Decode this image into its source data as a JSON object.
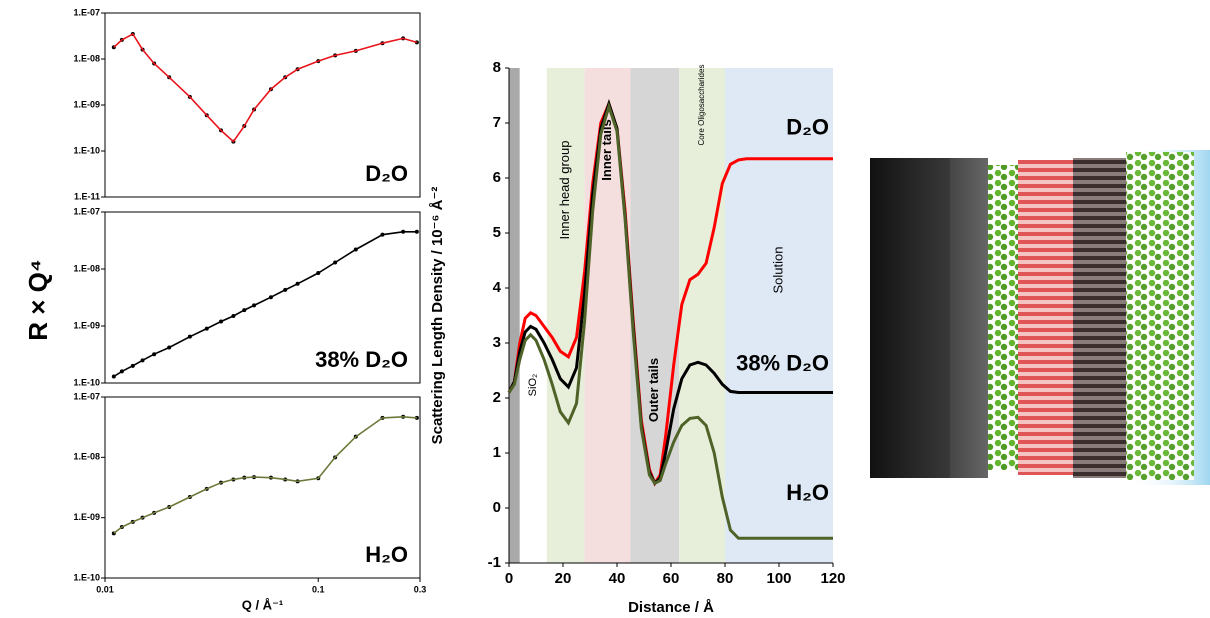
{
  "chart_data": [
    {
      "type": "line",
      "xscale": "log",
      "yscale": "log",
      "markers": true,
      "ylabel": "R × Q⁴",
      "annotation": "D₂O",
      "xlim": [
        0.01,
        0.3
      ],
      "ylim": [
        1e-11,
        1e-07
      ],
      "yticks": [
        {
          "value": 1e-07,
          "label": "1.E-07"
        },
        {
          "value": 1e-08,
          "label": "1.E-08"
        },
        {
          "value": 1e-09,
          "label": "1.E-09"
        },
        {
          "value": 1e-10,
          "label": "1.E-10"
        },
        {
          "value": 1e-11,
          "label": "1.E-11"
        }
      ],
      "x": [
        0.011,
        0.012,
        0.0135,
        0.015,
        0.017,
        0.02,
        0.025,
        0.03,
        0.035,
        0.04,
        0.045,
        0.05,
        0.06,
        0.07,
        0.08,
        0.1,
        0.12,
        0.15,
        0.2,
        0.25,
        0.29
      ],
      "series": [
        {
          "color": "#e8141b",
          "marker_color": "#000000",
          "values": [
            1.8e-08,
            2.6e-08,
            3.5e-08,
            1.6e-08,
            8e-09,
            4e-09,
            1.5e-09,
            6e-10,
            2.8e-10,
            1.6e-10,
            3.5e-10,
            8e-10,
            2.2e-09,
            4e-09,
            6e-09,
            9e-09,
            1.2e-08,
            1.5e-08,
            2.2e-08,
            2.8e-08,
            2.3e-08
          ]
        }
      ]
    },
    {
      "type": "line",
      "xscale": "log",
      "yscale": "log",
      "markers": true,
      "annotation": "38% D₂O",
      "xlim": [
        0.01,
        0.3
      ],
      "ylim": [
        1e-10,
        1e-07
      ],
      "yticks": [
        {
          "value": 1e-07,
          "label": "1.E-07"
        },
        {
          "value": 1e-08,
          "label": "1.E-08"
        },
        {
          "value": 1e-09,
          "label": "1.E-09"
        },
        {
          "value": 1e-10,
          "label": "1.E-10"
        }
      ],
      "x": [
        0.011,
        0.012,
        0.0135,
        0.015,
        0.017,
        0.02,
        0.025,
        0.03,
        0.035,
        0.04,
        0.045,
        0.05,
        0.06,
        0.07,
        0.08,
        0.1,
        0.12,
        0.15,
        0.2,
        0.25,
        0.29
      ],
      "series": [
        {
          "color": "#000000",
          "marker_color": "#000000",
          "values": [
            1.3e-10,
            1.6e-10,
            2e-10,
            2.5e-10,
            3.2e-10,
            4.2e-10,
            6.5e-10,
            9e-10,
            1.2e-09,
            1.5e-09,
            1.9e-09,
            2.3e-09,
            3.2e-09,
            4.3e-09,
            5.5e-09,
            8.5e-09,
            1.3e-08,
            2.2e-08,
            4e-08,
            4.5e-08,
            4.5e-08
          ]
        }
      ]
    },
    {
      "type": "line",
      "xscale": "log",
      "yscale": "log",
      "markers": true,
      "annotation": "H₂O",
      "xlabel": "Q / Å⁻¹",
      "xlim": [
        0.01,
        0.3
      ],
      "ylim": [
        1e-10,
        1e-07
      ],
      "xticks": [
        0.01,
        0.1,
        0.3
      ],
      "yticks": [
        {
          "value": 1e-07,
          "label": "1.E-07"
        },
        {
          "value": 1e-08,
          "label": "1.E-08"
        },
        {
          "value": 1e-09,
          "label": "1.E-09"
        },
        {
          "value": 1e-10,
          "label": "1.E-10"
        }
      ],
      "x": [
        0.011,
        0.012,
        0.0135,
        0.015,
        0.017,
        0.02,
        0.025,
        0.03,
        0.035,
        0.04,
        0.045,
        0.05,
        0.06,
        0.07,
        0.08,
        0.1,
        0.12,
        0.15,
        0.2,
        0.25,
        0.29
      ],
      "series": [
        {
          "color": "#6b7a3a",
          "marker_color": "#000000",
          "values": [
            5.5e-10,
            7e-10,
            8.5e-10,
            1e-09,
            1.2e-09,
            1.5e-09,
            2.2e-09,
            3e-09,
            3.8e-09,
            4.3e-09,
            4.6e-09,
            4.7e-09,
            4.6e-09,
            4.3e-09,
            4e-09,
            4.5e-09,
            1e-08,
            2.2e-08,
            4.5e-08,
            4.7e-08,
            4.5e-08
          ]
        }
      ]
    },
    {
      "type": "line",
      "xscale": "linear",
      "yscale": "linear",
      "xlabel": "Distance / Å",
      "ylabel": "Scattering Length Density / 10⁻⁶ Å⁻²",
      "xlim": [
        0,
        120
      ],
      "ylim": [
        -1,
        8
      ],
      "xticks": [
        0,
        20,
        40,
        60,
        80,
        100,
        120
      ],
      "yticks": [
        -1,
        0,
        1,
        2,
        3,
        4,
        5,
        6,
        7,
        8
      ],
      "regions": [
        {
          "start": 0,
          "end": 4,
          "color": "#a9a9a9"
        },
        {
          "start": 4,
          "end": 14,
          "color": "#ffffff",
          "label": "SiO₂"
        },
        {
          "start": 14,
          "end": 28,
          "color": "#e7efdb",
          "label": "Inner head group"
        },
        {
          "start": 28,
          "end": 45,
          "color": "#f5dede",
          "label": "Inner tails"
        },
        {
          "start": 45,
          "end": 63,
          "color": "#d6d6d6",
          "label": "Outer tails"
        },
        {
          "start": 63,
          "end": 80,
          "color": "#e7efdb",
          "label": "Core Oligosaccharides"
        },
        {
          "start": 80,
          "end": 120,
          "color": "#dfe9f5",
          "label": "Solution"
        }
      ],
      "x": [
        0,
        2,
        4,
        6,
        8,
        10,
        13,
        16,
        19,
        22,
        25,
        28,
        31,
        34,
        37,
        40,
        43,
        46,
        49,
        52,
        54,
        56,
        58,
        61,
        64,
        67,
        70,
        73,
        76,
        79,
        82,
        85,
        88,
        92,
        100,
        110,
        120
      ],
      "series": [
        {
          "name": "D₂O",
          "color": "#ff0000",
          "values": [
            2.1,
            2.3,
            3.0,
            3.45,
            3.55,
            3.5,
            3.3,
            3.1,
            2.85,
            2.75,
            3.1,
            4.3,
            5.9,
            7.0,
            7.35,
            6.9,
            5.4,
            3.4,
            1.6,
            0.7,
            0.45,
            0.6,
            1.3,
            2.6,
            3.7,
            4.15,
            4.25,
            4.45,
            5.1,
            5.9,
            6.25,
            6.33,
            6.35,
            6.35,
            6.35,
            6.35,
            6.35
          ]
        },
        {
          "name": "38% D₂O",
          "color": "#000000",
          "values": [
            2.1,
            2.3,
            2.85,
            3.2,
            3.3,
            3.25,
            3.0,
            2.7,
            2.35,
            2.2,
            2.55,
            3.9,
            5.7,
            6.9,
            7.35,
            6.9,
            5.3,
            3.3,
            1.5,
            0.65,
            0.45,
            0.55,
            1.0,
            1.8,
            2.35,
            2.6,
            2.65,
            2.6,
            2.45,
            2.25,
            2.12,
            2.1,
            2.1,
            2.1,
            2.1,
            2.1,
            2.1
          ]
        },
        {
          "name": "H₂O",
          "color": "#4f6228",
          "values": [
            2.1,
            2.25,
            2.7,
            3.05,
            3.15,
            3.05,
            2.7,
            2.25,
            1.75,
            1.55,
            1.9,
            3.4,
            5.4,
            6.8,
            7.3,
            6.85,
            5.25,
            3.2,
            1.45,
            0.6,
            0.45,
            0.5,
            0.8,
            1.2,
            1.5,
            1.63,
            1.65,
            1.5,
            1.0,
            0.2,
            -0.4,
            -0.55,
            -0.55,
            -0.55,
            -0.55,
            -0.55,
            -0.55
          ]
        }
      ]
    }
  ]
}
